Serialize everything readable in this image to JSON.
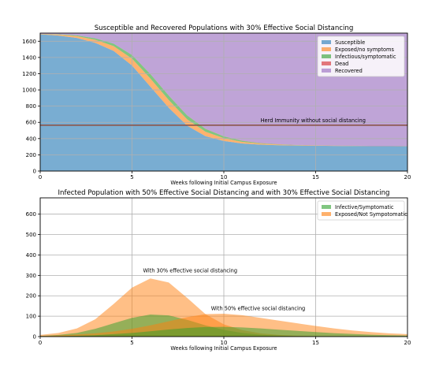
{
  "chart_data": [
    {
      "type": "area",
      "title": "Susceptible and Recovered Populations with  30% Effective Social Distancing",
      "xlabel": "Weeks following Initial Campus Exposure",
      "ylabel": "",
      "xlim": [
        0,
        20
      ],
      "ylim": [
        0,
        1700
      ],
      "xticks": [
        0,
        5,
        10,
        15,
        20
      ],
      "yticks": [
        0,
        200,
        400,
        600,
        800,
        1000,
        1200,
        1400,
        1600
      ],
      "grid": true,
      "stacked": true,
      "legend_position": "top-right",
      "x": [
        0,
        1,
        2,
        3,
        4,
        5,
        6,
        7,
        8,
        9,
        10,
        11,
        12,
        13,
        14,
        15,
        16,
        17,
        18,
        19,
        20
      ],
      "series": [
        {
          "name": "Susceptible",
          "color": "#1f77b4",
          "values": [
            1685,
            1670,
            1640,
            1580,
            1480,
            1300,
            1040,
            780,
            560,
            430,
            370,
            340,
            325,
            318,
            314,
            312,
            310,
            309,
            308,
            308,
            307
          ]
        },
        {
          "name": "Exposed/no symptoms",
          "color": "#ff7f0e",
          "values": [
            5,
            12,
            22,
            38,
            60,
            85,
            100,
            95,
            78,
            55,
            35,
            20,
            12,
            7,
            4,
            3,
            2,
            1,
            1,
            1,
            1
          ]
        },
        {
          "name": "Infectious/symptomatic",
          "color": "#2ca02c",
          "values": [
            2,
            5,
            10,
            18,
            30,
            45,
            55,
            55,
            48,
            35,
            22,
            13,
            7,
            4,
            2,
            1,
            1,
            1,
            0,
            0,
            0
          ]
        },
        {
          "name": "Dead",
          "color": "#d62728",
          "values": [
            0,
            0,
            0,
            0,
            0,
            0,
            1,
            1,
            1,
            2,
            2,
            2,
            2,
            2,
            2,
            2,
            2,
            2,
            2,
            2,
            2
          ]
        },
        {
          "name": "Recovered",
          "color": "#9467bd",
          "values": [
            8,
            13,
            28,
            64,
            130,
            270,
            504,
            769,
            1013,
            1178,
            1271,
            1325,
            1354,
            1369,
            1378,
            1382,
            1385,
            1387,
            1389,
            1389,
            1390
          ]
        }
      ],
      "reference_line": {
        "y": 565,
        "color": "#8c564b"
      },
      "annotations": [
        {
          "text": "Herd Immunity without social distancing",
          "x": 12,
          "y": 600
        }
      ]
    },
    {
      "type": "area",
      "title": "Infected Population with 50% Effective Social Distancing and with  30% Effective Social Distancing",
      "xlabel": "Weeks following Initial Campus Exposure",
      "ylabel": "",
      "xlim": [
        0,
        20
      ],
      "ylim": [
        0,
        680
      ],
      "xticks": [
        0,
        5,
        10,
        15,
        20
      ],
      "yticks": [
        0,
        100,
        200,
        300,
        400,
        500,
        600
      ],
      "grid": true,
      "stacked": false,
      "legend_position": "top-right",
      "legend": [
        {
          "name": "Infective/Symptomatic",
          "color": "#2ca02c"
        },
        {
          "name": "Exposed/Not Sympotomatic",
          "color": "#ff7f0e"
        }
      ],
      "x": [
        0,
        1,
        2,
        3,
        4,
        5,
        6,
        7,
        8,
        9,
        10,
        11,
        12,
        13,
        14,
        15,
        16,
        17,
        18,
        19,
        20
      ],
      "series": [
        {
          "name": "",
          "color": "#ff7f0e",
          "values": [
            8,
            18,
            40,
            85,
            160,
            240,
            285,
            265,
            190,
            110,
            60,
            32,
            16,
            8,
            4,
            2,
            1,
            0,
            0,
            0,
            0
          ]
        },
        {
          "name": "",
          "color": "#2ca02c",
          "values": [
            3,
            8,
            18,
            38,
            65,
            92,
            108,
            104,
            82,
            55,
            33,
            18,
            9,
            5,
            2,
            1,
            0,
            0,
            0,
            0,
            0
          ]
        },
        {
          "name": "",
          "color": "#ff7f0e",
          "values": [
            3,
            6,
            10,
            16,
            25,
            38,
            55,
            75,
            95,
            110,
            112,
            105,
            92,
            78,
            65,
            52,
            40,
            30,
            22,
            16,
            12
          ]
        },
        {
          "name": "",
          "color": "#2ca02c",
          "values": [
            1,
            2,
            4,
            7,
            12,
            18,
            26,
            35,
            42,
            47,
            48,
            45,
            40,
            34,
            28,
            22,
            17,
            13,
            9,
            7,
            5
          ]
        }
      ],
      "annotations": [
        {
          "text": "With  30% effective social distancing",
          "x": 5.6,
          "y": 315
        },
        {
          "text": "With 50% effective social distancing",
          "x": 9.3,
          "y": 130
        }
      ]
    }
  ]
}
